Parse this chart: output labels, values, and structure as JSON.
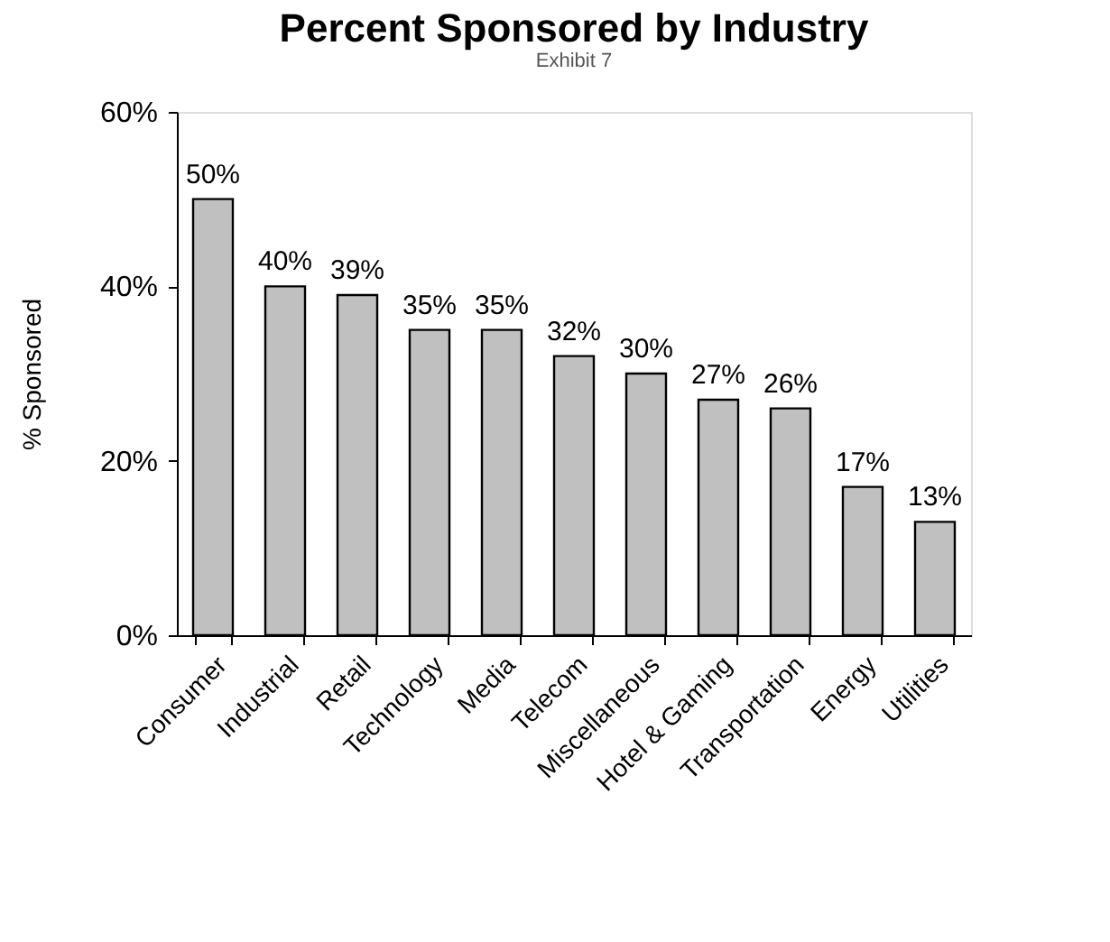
{
  "chart_data": {
    "type": "bar",
    "title": "Percent Sponsored by Industry",
    "ylabel": "% Sponsored",
    "annotations": [
      "Exhibit 7"
    ],
    "categories": [
      "Consumer",
      "Industrial",
      "Retail",
      "Technology",
      "Media",
      "Telecom",
      "Miscellaneous",
      "Hotel & Gaming",
      "Transportation",
      "Energy",
      "Utilities"
    ],
    "values": [
      50,
      40,
      39,
      35,
      35,
      32,
      30,
      27,
      26,
      17,
      13
    ],
    "value_labels": [
      "50%",
      "40%",
      "39%",
      "35%",
      "35%",
      "32%",
      "30%",
      "27%",
      "26%",
      "17%",
      "13%"
    ],
    "color": "#c0c0c0",
    "ylim": [
      0,
      60
    ],
    "yticks": [
      {
        "value": 0,
        "label": "0%"
      },
      {
        "value": 20,
        "label": "20%"
      },
      {
        "value": 40,
        "label": "40%"
      },
      {
        "value": 60,
        "label": "60%"
      }
    ],
    "grid": false
  }
}
